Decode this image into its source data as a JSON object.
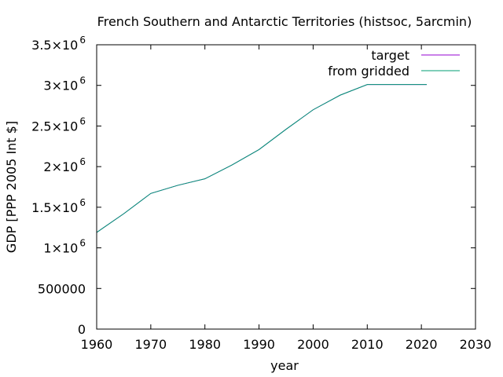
{
  "chart_data": {
    "type": "line",
    "title": "French Southern and Antarctic Territories (histsoc, 5arcmin)",
    "xlabel": "year",
    "ylabel": "GDP [PPP 2005 Int $]",
    "xlim": [
      1960,
      2030
    ],
    "ylim": [
      0,
      3500000
    ],
    "x_ticks": [
      {
        "value": 1960,
        "label": "1960"
      },
      {
        "value": 1970,
        "label": "1970"
      },
      {
        "value": 1980,
        "label": "1980"
      },
      {
        "value": 1990,
        "label": "1990"
      },
      {
        "value": 2000,
        "label": "2000"
      },
      {
        "value": 2010,
        "label": "2010"
      },
      {
        "value": 2020,
        "label": "2020"
      },
      {
        "value": 2030,
        "label": "2030"
      }
    ],
    "y_ticks": [
      {
        "value": 0,
        "mant": "0",
        "exp": ""
      },
      {
        "value": 500000,
        "mant": "500000",
        "exp": ""
      },
      {
        "value": 1000000,
        "mant": "1×10",
        "exp": "6"
      },
      {
        "value": 1500000,
        "mant": "1.5×10",
        "exp": "6"
      },
      {
        "value": 2000000,
        "mant": "2×10",
        "exp": "6"
      },
      {
        "value": 2500000,
        "mant": "2.5×10",
        "exp": "6"
      },
      {
        "value": 3000000,
        "mant": "3×10",
        "exp": "6"
      },
      {
        "value": 3500000,
        "mant": "3.5×10",
        "exp": "6"
      }
    ],
    "grid": false,
    "legend_position": "top-right",
    "series": [
      {
        "name": "target",
        "color": "#9400d3",
        "x": [
          1960,
          1965,
          1970,
          1975,
          1980,
          1985,
          1990,
          1995,
          2000,
          2005,
          2010,
          2015,
          2021
        ],
        "y": [
          1190000,
          1420000,
          1670000,
          1770000,
          1850000,
          2020000,
          2210000,
          2460000,
          2700000,
          2880000,
          3010000,
          3010000,
          3010000
        ]
      },
      {
        "name": "from gridded",
        "color": "#009e73",
        "x": [
          1960,
          1965,
          1970,
          1975,
          1980,
          1985,
          1990,
          1995,
          2000,
          2005,
          2010,
          2015,
          2021
        ],
        "y": [
          1190000,
          1420000,
          1670000,
          1770000,
          1850000,
          2020000,
          2210000,
          2460000,
          2700000,
          2880000,
          3010000,
          3010000,
          3010000
        ]
      }
    ]
  }
}
